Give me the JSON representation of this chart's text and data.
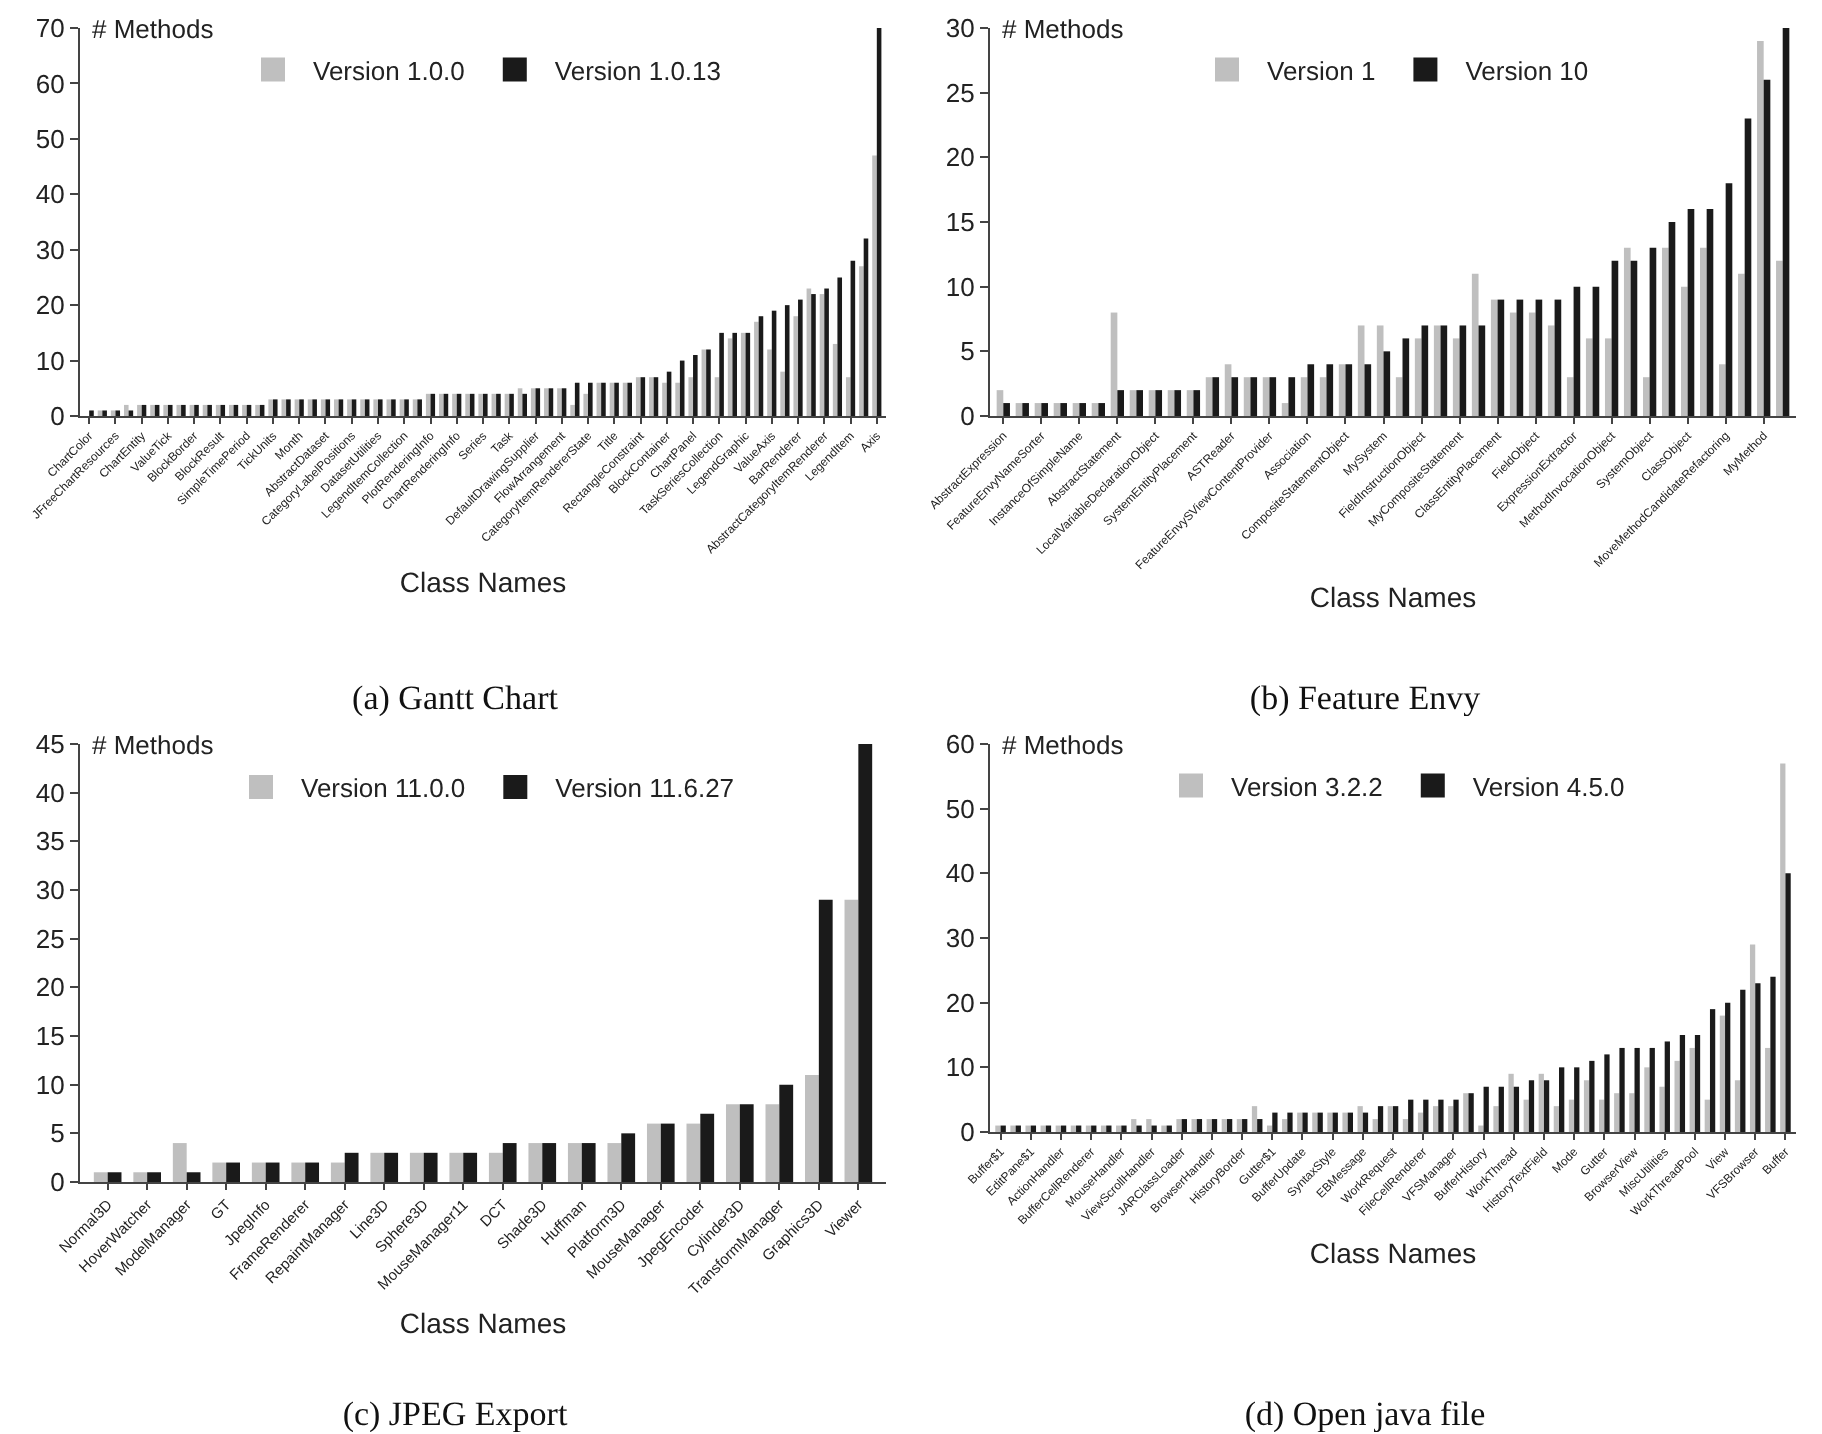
{
  "chart_data": [
    {
      "type": "bar",
      "title": "(a) Gantt Chart",
      "xlabel": "Class Names",
      "ylabel": "# Methods",
      "legend": "top",
      "grid": false,
      "ylim": [
        0,
        70
      ],
      "yticks": [
        0,
        10,
        20,
        30,
        40,
        50,
        60,
        70
      ],
      "categories": [
        "ChartColor",
        null,
        "JFreeChartResources",
        null,
        "ChartEntity",
        null,
        "ValueTick",
        null,
        "BlockBorder",
        null,
        "BlockResult",
        null,
        "SimpleTimePeriod",
        null,
        "TickUnits",
        null,
        "Month",
        null,
        "AbstractDataset",
        null,
        "CategoryLabelPositions",
        null,
        "DatasetUtilities",
        null,
        "LegendItemCollection",
        null,
        "PlotRenderingInfo",
        null,
        "ChartRenderingInfo",
        null,
        "Series",
        null,
        "Task",
        null,
        "DefaultDrawingSupplier",
        null,
        "FlowArrangement",
        null,
        "CategoryItemRendererState",
        null,
        "Title",
        null,
        "RectangleConstraint",
        null,
        "BlockContainer",
        null,
        "ChartPanel",
        null,
        "TaskSeriesCollection",
        null,
        "LegendGraphic",
        null,
        "ValueAxis",
        null,
        "BarRenderer",
        null,
        "AbstractCategoryItemRenderer",
        null,
        "LegendItem",
        null,
        "Axis"
      ],
      "series": [
        {
          "name": "Version 1.0.0",
          "color": "#bfbfbf",
          "values": [
            0,
            1,
            1,
            2,
            2,
            2,
            2,
            2,
            2,
            2,
            2,
            2,
            2,
            2,
            3,
            3,
            3,
            3,
            3,
            3,
            3,
            3,
            3,
            3,
            3,
            3,
            4,
            4,
            4,
            4,
            4,
            4,
            4,
            5,
            5,
            5,
            5,
            2,
            4,
            6,
            6,
            6,
            7,
            7,
            6,
            6,
            7,
            12,
            7,
            14,
            15,
            17,
            12,
            8,
            18,
            23,
            22,
            13,
            7,
            27,
            47
          ]
        },
        {
          "name": "Version 1.0.13",
          "color": "#1a1a1a",
          "values": [
            1,
            1,
            1,
            1,
            2,
            2,
            2,
            2,
            2,
            2,
            2,
            2,
            2,
            2,
            3,
            3,
            3,
            3,
            3,
            3,
            3,
            3,
            3,
            3,
            3,
            3,
            4,
            4,
            4,
            4,
            4,
            4,
            4,
            4,
            5,
            5,
            5,
            6,
            6,
            6,
            6,
            6,
            7,
            7,
            8,
            10,
            11,
            12,
            15,
            15,
            15,
            18,
            19,
            20,
            21,
            22,
            23,
            25,
            28,
            32,
            70
          ]
        }
      ]
    },
    {
      "type": "bar",
      "title": "(b) Feature Envy",
      "xlabel": "Class Names",
      "ylabel": "# Methods",
      "legend": "top",
      "grid": false,
      "ylim": [
        0,
        30
      ],
      "yticks": [
        0,
        5,
        10,
        15,
        20,
        25,
        30
      ],
      "categories": [
        "AbstractExpression",
        null,
        "FeatureEnvyNameSorter",
        null,
        "InstanceOfSimpleName",
        null,
        "AbstractStatement",
        null,
        "LocalVariableDeclarationObject",
        null,
        "SystemEntityPlacement",
        null,
        "ASTReader",
        null,
        "FeatureEnvySViewContentProvider",
        null,
        "Association",
        null,
        "CompositeStatementObject",
        null,
        "MySystem",
        null,
        "FieldInstructionObject",
        null,
        "MyCompositeStatement",
        null,
        "ClassEntityPlacement",
        null,
        "FieldObject",
        null,
        "ExpressionExtractor",
        null,
        "MethodInvocationObject",
        null,
        "SystemObject",
        null,
        "ClassObject",
        null,
        "MoveMethodCandidateRefactoring",
        null,
        "MyMethod",
        null
      ],
      "series": [
        {
          "name": "Version 1",
          "color": "#bfbfbf",
          "values": [
            2,
            1,
            1,
            1,
            1,
            1,
            8,
            2,
            2,
            2,
            2,
            3,
            4,
            3,
            3,
            1,
            3,
            3,
            4,
            7,
            7,
            3,
            6,
            7,
            6,
            11,
            9,
            8,
            8,
            7,
            3,
            6,
            6,
            13,
            3,
            13,
            10,
            13,
            4,
            11,
            29,
            12
          ]
        },
        {
          "name": "Version 10",
          "color": "#1a1a1a",
          "values": [
            1,
            1,
            1,
            1,
            1,
            1,
            2,
            2,
            2,
            2,
            2,
            3,
            3,
            3,
            3,
            3,
            4,
            4,
            4,
            4,
            5,
            6,
            7,
            7,
            7,
            7,
            9,
            9,
            9,
            9,
            10,
            10,
            12,
            12,
            13,
            15,
            16,
            16,
            18,
            23,
            26,
            30
          ]
        }
      ]
    },
    {
      "type": "bar",
      "title": "(c) JPEG Export",
      "xlabel": "Class Names",
      "ylabel": "# Methods",
      "legend": "top",
      "grid": false,
      "ylim": [
        0,
        45
      ],
      "yticks": [
        0,
        5,
        10,
        15,
        20,
        25,
        30,
        35,
        40,
        45
      ],
      "categories": [
        "Normal3D",
        "HoverWatcher",
        "ModelManager",
        "GT",
        "JpegInfo",
        "FrameRenderer",
        "RepaintManager",
        "Line3D",
        "Sphere3D",
        "MouseManager11",
        "DCT",
        "Shade3D",
        "Huffman",
        "Platform3D",
        "MouseManager",
        "JpegEncoder",
        "Cylinder3D",
        "TransformManager",
        "Graphics3D",
        "Viewer"
      ],
      "series": [
        {
          "name": "Version 11.0.0",
          "color": "#bfbfbf",
          "values": [
            1,
            1,
            4,
            2,
            2,
            2,
            2,
            3,
            3,
            3,
            3,
            4,
            4,
            4,
            6,
            6,
            8,
            8,
            11,
            29
          ]
        },
        {
          "name": "Version 11.6.27",
          "color": "#1a1a1a",
          "values": [
            1,
            1,
            1,
            2,
            2,
            2,
            3,
            3,
            3,
            3,
            4,
            4,
            4,
            5,
            6,
            7,
            8,
            10,
            29,
            45
          ]
        }
      ]
    },
    {
      "type": "bar",
      "title": "(d) Open java file",
      "xlabel": "Class Names",
      "ylabel": "# Methods",
      "legend": "top",
      "grid": false,
      "ylim": [
        0,
        60
      ],
      "yticks": [
        0,
        10,
        20,
        30,
        40,
        50,
        60
      ],
      "categories": [
        "Buffer$1",
        null,
        "EditPane$1",
        null,
        "ActionHandler",
        null,
        "BufferCellRenderer",
        null,
        "MouseHandler",
        null,
        "ViewScrollHandler",
        null,
        "JARClassLoader",
        null,
        "BrowserHandler",
        null,
        "HistoryBorder",
        null,
        "Gutter$1",
        null,
        "BufferUpdate",
        null,
        "SyntaxStyle",
        null,
        "EBMessage",
        null,
        "WorkRequest",
        null,
        "FileCellRenderer",
        null,
        "VFSManager",
        null,
        "BufferHistory",
        null,
        "WorkThread",
        null,
        "HistoryTextField",
        null,
        "Mode",
        null,
        "Gutter",
        null,
        "BrowserView",
        null,
        "MiscUtilities",
        null,
        "WorkThreadPool",
        null,
        "View",
        null,
        "VFSBrowser",
        null,
        "Buffer"
      ],
      "series": [
        {
          "name": "Version 3.2.2",
          "color": "#bfbfbf",
          "values": [
            1,
            1,
            1,
            1,
            1,
            1,
            1,
            1,
            1,
            2,
            2,
            1,
            2,
            2,
            2,
            2,
            2,
            4,
            1,
            2,
            3,
            3,
            3,
            3,
            4,
            2,
            4,
            2,
            3,
            4,
            4,
            6,
            1,
            4,
            9,
            5,
            9,
            4,
            5,
            8,
            5,
            6,
            6,
            10,
            7,
            11,
            13,
            5,
            18,
            8,
            29,
            13,
            57
          ]
        },
        {
          "name": "Version 4.5.0",
          "color": "#1a1a1a",
          "values": [
            1,
            1,
            1,
            1,
            1,
            1,
            1,
            1,
            1,
            1,
            1,
            1,
            2,
            2,
            2,
            2,
            2,
            2,
            3,
            3,
            3,
            3,
            3,
            3,
            3,
            4,
            4,
            5,
            5,
            5,
            5,
            6,
            7,
            7,
            7,
            8,
            8,
            10,
            10,
            11,
            12,
            13,
            13,
            13,
            14,
            15,
            15,
            19,
            20,
            22,
            23,
            24,
            40
          ]
        }
      ]
    }
  ]
}
